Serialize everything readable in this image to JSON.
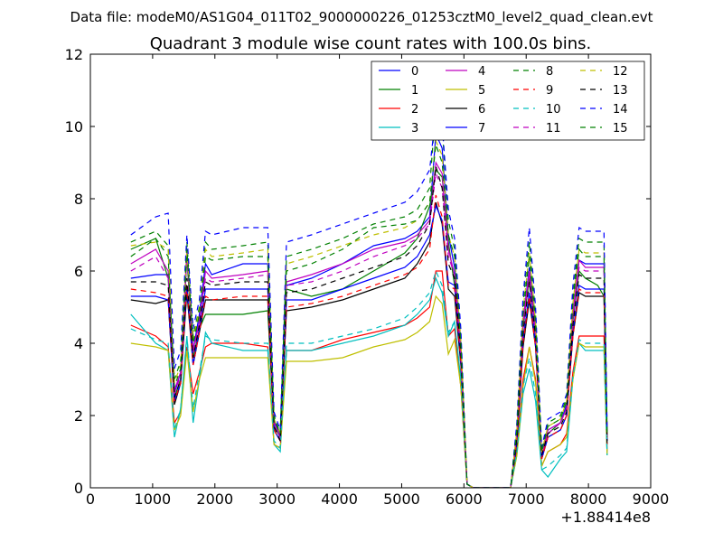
{
  "chart_data": {
    "type": "line",
    "suptitle": "Data file: modeM0/AS1G04_011T02_9000000226_01253cztM0_level2_quad_clean.evt",
    "title": "Quadrant 3 module wise count rates with 100.0s bins.",
    "xlabel": "",
    "ylabel": "",
    "x_offset_label": "+1.88414e8",
    "xlim": [
      0,
      9000
    ],
    "ylim": [
      0,
      12
    ],
    "xticks": [
      0,
      1000,
      2000,
      3000,
      4000,
      5000,
      6000,
      7000,
      8000,
      9000
    ],
    "yticks": [
      0,
      2,
      4,
      6,
      8,
      10,
      12
    ],
    "grid": false,
    "legend_position": "top-right",
    "x": [
      650,
      1050,
      1250,
      1350,
      1450,
      1550,
      1650,
      1750,
      1850,
      1950,
      2450,
      2850,
      2950,
      3050,
      3150,
      3550,
      4050,
      4550,
      5050,
      5250,
      5450,
      5550,
      5650,
      5750,
      5850,
      5950,
      6050,
      6150,
      6250,
      6750,
      6850,
      6950,
      7050,
      7150,
      7250,
      7350,
      7550,
      7650,
      7750,
      7850,
      7950,
      8150,
      8250,
      8300
    ],
    "series": [
      {
        "name": "0",
        "color": "#0000ff",
        "dash": "solid",
        "values": [
          5.8,
          5.9,
          5.9,
          2.6,
          3.2,
          6.4,
          3.8,
          4.8,
          6.2,
          5.9,
          6.2,
          6.2,
          1.9,
          1.4,
          5.6,
          5.8,
          6.2,
          6.7,
          6.9,
          7.1,
          7.5,
          9.8,
          9.4,
          7.0,
          6.1,
          4.0,
          0.1,
          0.0,
          0.0,
          0.0,
          1.5,
          4.6,
          6.1,
          4.4,
          0.9,
          1.6,
          1.8,
          2.3,
          4.8,
          6.3,
          6.2,
          6.2,
          6.2,
          1.4
        ]
      },
      {
        "name": "1",
        "color": "#008000",
        "dash": "solid",
        "values": [
          6.6,
          6.9,
          5.8,
          2.5,
          3.0,
          6.4,
          3.6,
          4.4,
          4.8,
          4.8,
          4.8,
          4.9,
          1.7,
          1.4,
          5.5,
          5.3,
          5.5,
          6.0,
          6.5,
          6.9,
          7.8,
          8.8,
          8.6,
          6.8,
          5.6,
          3.9,
          0.1,
          0.0,
          0.0,
          0.0,
          1.4,
          4.4,
          5.8,
          4.2,
          0.9,
          1.5,
          1.8,
          2.2,
          4.6,
          6.0,
          5.8,
          5.6,
          5.3,
          1.3
        ]
      },
      {
        "name": "2",
        "color": "#ff0000",
        "dash": "solid",
        "values": [
          4.5,
          4.2,
          3.9,
          1.8,
          2.1,
          3.9,
          2.6,
          3.2,
          3.9,
          4.0,
          4.0,
          3.9,
          1.2,
          1.1,
          3.8,
          3.8,
          4.1,
          4.3,
          4.5,
          4.7,
          5.0,
          6.0,
          6.0,
          4.2,
          4.4,
          2.8,
          0.1,
          0.0,
          0.0,
          0.0,
          1.0,
          3.0,
          3.9,
          3.0,
          0.6,
          1.0,
          1.2,
          1.5,
          3.2,
          4.2,
          4.2,
          4.2,
          4.2,
          1.0
        ]
      },
      {
        "name": "3",
        "color": "#00bfbf",
        "dash": "solid",
        "values": [
          4.8,
          4.0,
          3.8,
          1.4,
          2.2,
          4.2,
          1.8,
          3.0,
          4.3,
          4.0,
          3.8,
          3.8,
          1.2,
          1.0,
          3.8,
          3.8,
          4.0,
          4.2,
          4.5,
          4.8,
          5.2,
          5.8,
          5.4,
          4.2,
          4.6,
          3.0,
          0.1,
          0.0,
          0.0,
          0.0,
          0.9,
          2.6,
          3.3,
          2.4,
          0.5,
          0.3,
          0.8,
          1.0,
          3.0,
          4.0,
          3.8,
          3.8,
          3.8,
          0.9
        ]
      },
      {
        "name": "4",
        "color": "#bf00bf",
        "dash": "solid",
        "values": [
          6.2,
          6.6,
          6.0,
          2.7,
          3.2,
          6.6,
          3.8,
          4.6,
          6.0,
          5.8,
          5.9,
          6.0,
          1.8,
          1.4,
          5.7,
          5.9,
          6.2,
          6.6,
          6.8,
          7.0,
          7.4,
          9.0,
          8.7,
          6.6,
          5.9,
          3.8,
          0.1,
          0.0,
          0.0,
          0.0,
          1.5,
          4.6,
          6.0,
          4.3,
          0.9,
          1.6,
          1.8,
          2.2,
          4.8,
          6.3,
          6.1,
          6.1,
          6.1,
          1.4
        ]
      },
      {
        "name": "5",
        "color": "#bfbf00",
        "dash": "solid",
        "values": [
          4.0,
          3.9,
          3.8,
          1.6,
          2.0,
          3.8,
          2.1,
          3.0,
          3.6,
          3.6,
          3.6,
          3.6,
          1.2,
          1.1,
          3.5,
          3.5,
          3.6,
          3.9,
          4.1,
          4.3,
          4.6,
          5.3,
          5.1,
          3.7,
          4.1,
          2.8,
          0.1,
          0.0,
          0.0,
          0.0,
          0.9,
          2.8,
          3.9,
          2.9,
          0.6,
          1.0,
          1.2,
          1.4,
          3.0,
          4.0,
          3.9,
          3.9,
          3.9,
          0.9
        ]
      },
      {
        "name": "6",
        "color": "#000000",
        "dash": "solid",
        "values": [
          5.2,
          5.1,
          5.2,
          2.3,
          2.9,
          5.4,
          3.4,
          4.3,
          5.2,
          5.2,
          5.2,
          5.2,
          1.6,
          1.3,
          4.9,
          5.0,
          5.2,
          5.5,
          5.8,
          6.2,
          6.8,
          7.9,
          7.3,
          5.5,
          5.3,
          3.4,
          0.1,
          0.0,
          0.0,
          0.0,
          1.2,
          3.9,
          5.2,
          3.9,
          0.8,
          1.4,
          1.6,
          2.0,
          4.2,
          5.4,
          5.3,
          5.3,
          5.3,
          1.2
        ]
      },
      {
        "name": "7",
        "color": "#0000ff",
        "dash": "solid",
        "values": [
          5.3,
          5.3,
          5.2,
          2.4,
          2.9,
          5.6,
          3.4,
          4.4,
          5.5,
          5.5,
          5.5,
          5.5,
          1.6,
          1.3,
          5.2,
          5.2,
          5.5,
          5.8,
          6.1,
          6.4,
          7.0,
          7.8,
          7.4,
          5.7,
          5.6,
          3.5,
          0.1,
          0.0,
          0.0,
          0.0,
          1.3,
          4.1,
          5.4,
          4.0,
          0.8,
          1.4,
          1.6,
          2.0,
          4.3,
          5.6,
          5.5,
          5.5,
          5.5,
          1.3
        ]
      },
      {
        "name": "8",
        "color": "#008000",
        "dash": "dashed",
        "values": [
          6.8,
          7.1,
          6.7,
          3.0,
          3.5,
          6.8,
          4.2,
          5.0,
          6.8,
          6.6,
          6.7,
          6.8,
          2.0,
          1.5,
          6.4,
          6.6,
          6.9,
          7.3,
          7.5,
          7.7,
          8.3,
          10.6,
          10.0,
          7.4,
          6.6,
          4.2,
          0.1,
          0.0,
          0.0,
          0.0,
          1.7,
          5.1,
          6.8,
          4.8,
          1.0,
          1.8,
          2.0,
          2.5,
          5.3,
          6.9,
          6.8,
          6.8,
          6.8,
          1.5
        ]
      },
      {
        "name": "9",
        "color": "#ff0000",
        "dash": "dashed",
        "values": [
          5.5,
          5.4,
          5.3,
          2.4,
          2.9,
          5.6,
          3.4,
          4.3,
          5.3,
          5.2,
          5.3,
          5.3,
          1.6,
          1.3,
          5.0,
          5.1,
          5.3,
          5.6,
          5.9,
          6.1,
          6.6,
          8.1,
          7.5,
          5.6,
          5.5,
          3.5,
          0.1,
          0.0,
          0.0,
          0.0,
          1.3,
          4.0,
          5.3,
          3.9,
          0.8,
          1.4,
          1.6,
          2.0,
          4.2,
          5.5,
          5.4,
          5.4,
          5.4,
          1.2
        ]
      },
      {
        "name": "10",
        "color": "#00bfbf",
        "dash": "dashed",
        "values": [
          4.4,
          4.1,
          4.0,
          1.6,
          2.2,
          4.2,
          2.2,
          3.2,
          4.2,
          4.1,
          4.0,
          4.0,
          1.3,
          1.1,
          4.0,
          4.0,
          4.2,
          4.4,
          4.7,
          5.0,
          5.4,
          6.0,
          5.6,
          4.3,
          4.6,
          3.0,
          0.1,
          0.0,
          0.0,
          0.0,
          1.0,
          2.8,
          3.6,
          2.6,
          0.5,
          0.6,
          0.9,
          1.1,
          3.1,
          4.1,
          4.0,
          4.0,
          4.0,
          0.9
        ]
      },
      {
        "name": "11",
        "color": "#bf00bf",
        "dash": "dashed",
        "values": [
          6.0,
          6.4,
          5.8,
          2.6,
          3.1,
          6.4,
          3.7,
          4.6,
          5.8,
          5.7,
          5.8,
          5.9,
          1.8,
          1.4,
          5.6,
          5.7,
          6.0,
          6.4,
          6.7,
          6.9,
          7.3,
          8.7,
          8.3,
          6.4,
          5.9,
          3.7,
          0.1,
          0.0,
          0.0,
          0.0,
          1.5,
          4.4,
          5.9,
          4.2,
          0.9,
          1.5,
          1.8,
          2.2,
          4.7,
          6.1,
          6.0,
          6.0,
          6.0,
          1.4
        ]
      },
      {
        "name": "12",
        "color": "#bfbf00",
        "dash": "dashed",
        "values": [
          6.7,
          6.8,
          6.6,
          2.9,
          3.4,
          6.6,
          4.1,
          4.9,
          6.6,
          6.4,
          6.5,
          6.6,
          1.9,
          1.5,
          6.2,
          6.4,
          6.7,
          7.0,
          7.2,
          7.4,
          7.9,
          9.6,
          9.2,
          7.0,
          6.4,
          4.1,
          0.1,
          0.0,
          0.0,
          0.0,
          1.6,
          4.9,
          6.5,
          4.6,
          1.0,
          1.7,
          1.9,
          2.4,
          5.1,
          6.6,
          6.5,
          6.5,
          6.5,
          1.5
        ]
      },
      {
        "name": "13",
        "color": "#000000",
        "dash": "dashed",
        "values": [
          5.7,
          5.7,
          5.6,
          2.5,
          3.0,
          5.8,
          3.6,
          4.5,
          5.7,
          5.6,
          5.7,
          5.7,
          1.7,
          1.3,
          5.4,
          5.5,
          5.8,
          6.1,
          6.4,
          6.7,
          7.3,
          8.9,
          8.3,
          6.2,
          5.8,
          3.7,
          0.1,
          0.0,
          0.0,
          0.0,
          1.4,
          4.3,
          5.7,
          4.2,
          0.9,
          1.5,
          1.7,
          2.1,
          4.5,
          5.9,
          5.8,
          5.8,
          5.8,
          1.3
        ]
      },
      {
        "name": "14",
        "color": "#0000ff",
        "dash": "dashed",
        "values": [
          7.0,
          7.5,
          7.6,
          3.3,
          3.8,
          7.0,
          4.4,
          5.2,
          7.1,
          7.0,
          7.2,
          7.2,
          2.1,
          1.6,
          6.8,
          7.0,
          7.3,
          7.6,
          7.9,
          8.2,
          8.8,
          10.4,
          10.1,
          7.7,
          6.9,
          4.4,
          0.1,
          0.0,
          0.0,
          0.0,
          1.8,
          5.3,
          7.2,
          5.0,
          1.1,
          1.9,
          2.1,
          2.6,
          5.6,
          7.2,
          7.1,
          7.1,
          7.1,
          1.6
        ]
      },
      {
        "name": "15",
        "color": "#008000",
        "dash": "dashed",
        "values": [
          6.4,
          6.9,
          6.4,
          2.8,
          3.3,
          6.6,
          4.0,
          4.8,
          6.4,
          6.3,
          6.4,
          6.4,
          1.9,
          1.5,
          6.0,
          6.2,
          6.6,
          7.2,
          7.3,
          7.4,
          7.9,
          9.5,
          9.0,
          7.0,
          6.4,
          4.0,
          0.1,
          0.0,
          0.0,
          0.0,
          1.6,
          4.8,
          6.4,
          4.5,
          1.0,
          1.7,
          1.9,
          2.4,
          5.1,
          6.6,
          6.4,
          6.4,
          6.4,
          1.4
        ]
      }
    ]
  }
}
